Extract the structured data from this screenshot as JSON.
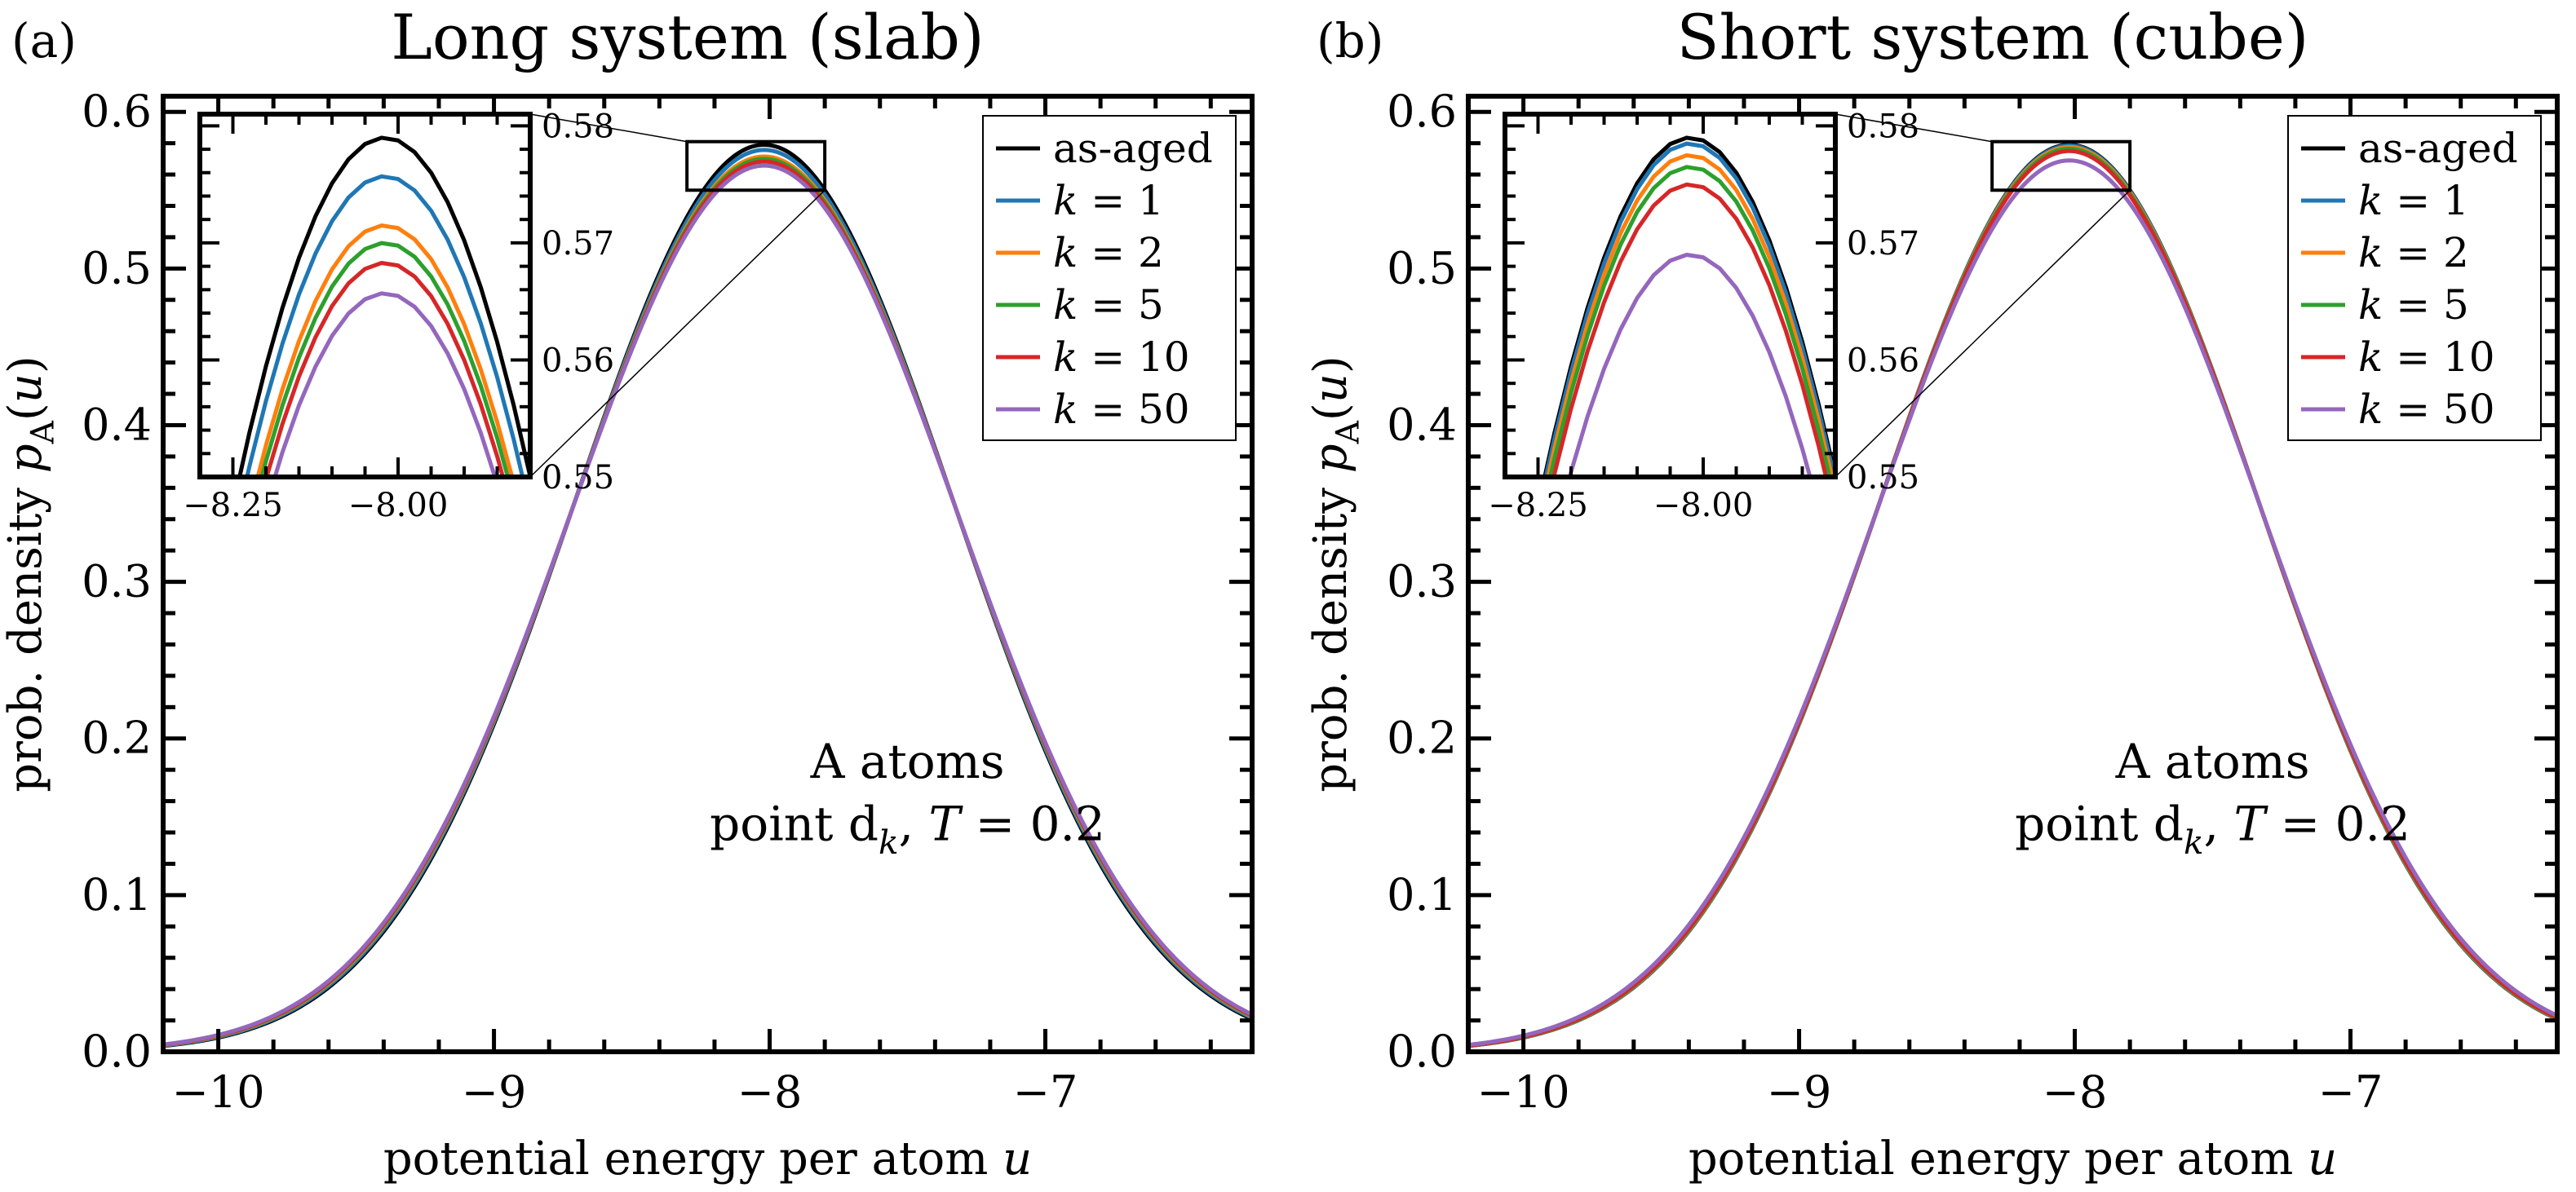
{
  "figure": {
    "panel_labels": [
      "(a)",
      "(b)"
    ]
  },
  "chart_data": [
    {
      "type": "line",
      "panel_label": "(a)",
      "title": "Long system (slab)",
      "xlabel": "potential energy per atom u",
      "ylabel": "prob. density p_A(u)",
      "xlim": [
        -10.2,
        -6.25
      ],
      "ylim": [
        0.0,
        0.61
      ],
      "xticks": [
        -10,
        -9,
        -8,
        -7
      ],
      "xtick_labels": [
        "−10",
        "−9",
        "−8",
        "−7"
      ],
      "yticks": [
        0.0,
        0.1,
        0.2,
        0.3,
        0.4,
        0.5,
        0.6
      ],
      "ytick_labels": [
        "0.0",
        "0.1",
        "0.2",
        "0.3",
        "0.4",
        "0.5",
        "0.6"
      ],
      "grid": false,
      "legend_position": "top-right",
      "annotation": [
        "A atoms",
        "point d_k, T = 0.2"
      ],
      "series": [
        {
          "name": "as-aged",
          "color": "#000000",
          "peak_x": -8.02,
          "peak_y": 0.579,
          "sigma": 0.6868
        },
        {
          "name": "k = 1",
          "color": "#1f77b4",
          "peak_x": -8.02,
          "peak_y": 0.5757,
          "sigma": 0.6907
        },
        {
          "name": "k = 2",
          "color": "#ff7f0e",
          "peak_x": -8.02,
          "peak_y": 0.5715,
          "sigma": 0.6958
        },
        {
          "name": "k = 5",
          "color": "#2ca02c",
          "peak_x": -8.02,
          "peak_y": 0.57,
          "sigma": 0.6977
        },
        {
          "name": "k = 10",
          "color": "#d62728",
          "peak_x": -8.02,
          "peak_y": 0.5683,
          "sigma": 0.6997
        },
        {
          "name": "k = 50",
          "color": "#9467bd",
          "peak_x": -8.02,
          "peak_y": 0.5657,
          "sigma": 0.703
        }
      ],
      "inset": {
        "xlim": [
          -8.3,
          -7.8
        ],
        "ylim": [
          0.55,
          0.581
        ],
        "xticks": [
          -8.25,
          -8.0
        ],
        "xtick_labels": [
          "−8.25",
          "−8.00"
        ],
        "yticks": [
          0.55,
          0.56,
          0.57,
          0.58
        ],
        "ytick_labels": [
          "0.55",
          "0.56",
          "0.57",
          "0.58"
        ]
      }
    },
    {
      "type": "line",
      "panel_label": "(b)",
      "title": "Short system (cube)",
      "xlabel": "potential energy per atom u",
      "ylabel": "prob. density p_A(u)",
      "xlim": [
        -10.2,
        -6.25
      ],
      "ylim": [
        0.0,
        0.61
      ],
      "xticks": [
        -10,
        -9,
        -8,
        -7
      ],
      "xtick_labels": [
        "−10",
        "−9",
        "−8",
        "−7"
      ],
      "yticks": [
        0.0,
        0.1,
        0.2,
        0.3,
        0.4,
        0.5,
        0.6
      ],
      "ytick_labels": [
        "0.0",
        "0.1",
        "0.2",
        "0.3",
        "0.4",
        "0.5",
        "0.6"
      ],
      "grid": false,
      "legend_position": "top-right",
      "annotation": [
        "A atoms",
        "point d_k, T = 0.2"
      ],
      "series": [
        {
          "name": "as-aged",
          "color": "#000000",
          "peak_x": -8.02,
          "peak_y": 0.579,
          "sigma": 0.6868
        },
        {
          "name": "k = 1",
          "color": "#1f77b4",
          "peak_x": -8.02,
          "peak_y": 0.5785,
          "sigma": 0.6874
        },
        {
          "name": "k = 2",
          "color": "#ff7f0e",
          "peak_x": -8.02,
          "peak_y": 0.5775,
          "sigma": 0.6886
        },
        {
          "name": "k = 5",
          "color": "#2ca02c",
          "peak_x": -8.02,
          "peak_y": 0.5765,
          "sigma": 0.6898
        },
        {
          "name": "k = 10",
          "color": "#d62728",
          "peak_x": -8.02,
          "peak_y": 0.575,
          "sigma": 0.6916
        },
        {
          "name": "k = 50",
          "color": "#9467bd",
          "peak_x": -8.02,
          "peak_y": 0.569,
          "sigma": 0.6989
        }
      ],
      "inset": {
        "xlim": [
          -8.3,
          -7.8
        ],
        "ylim": [
          0.55,
          0.581
        ],
        "xticks": [
          -8.25,
          -8.0
        ],
        "xtick_labels": [
          "−8.25",
          "−8.00"
        ],
        "yticks": [
          0.55,
          0.56,
          0.57,
          0.58
        ],
        "ytick_labels": [
          "0.55",
          "0.56",
          "0.57",
          "0.58"
        ]
      }
    }
  ]
}
